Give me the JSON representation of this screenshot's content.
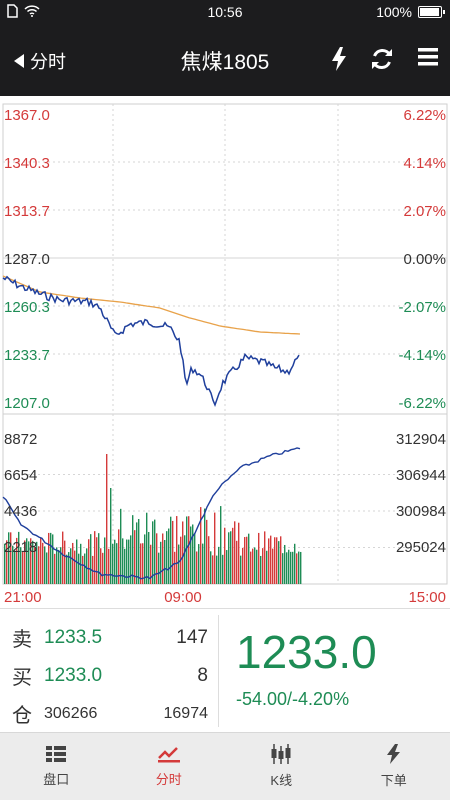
{
  "status_bar": {
    "time": "10:56",
    "battery": "100%",
    "battery_level": 1.0,
    "icons": [
      "sim-icon",
      "wifi-icon"
    ]
  },
  "nav": {
    "back_label": "分时",
    "title": "焦煤1805",
    "icons": [
      "flash-icon",
      "refresh-icon",
      "menu-icon"
    ]
  },
  "chart_labels": {
    "price_left": [
      "1367.0",
      "1340.3",
      "1313.7",
      "1287.0",
      "1260.3",
      "1233.7",
      "1207.0"
    ],
    "pct_right": [
      "6.22%",
      "4.14%",
      "2.07%",
      "0.00%",
      "-2.07%",
      "-4.14%",
      "-6.22%"
    ],
    "vol_left": [
      "8872",
      "6654",
      "4436",
      "2218"
    ],
    "oi_right": [
      "312904",
      "306944",
      "300984",
      "295024"
    ],
    "time_axis": [
      "21:00",
      "09:00",
      "15:00"
    ]
  },
  "colors": {
    "up": "#d43a3a",
    "down": "#1e8c55",
    "neutral": "#333333",
    "price_line": "#1f3f9c",
    "avg_line": "#e8a24a"
  },
  "quote": {
    "sell_label": "卖",
    "sell_price": "1233.5",
    "sell_vol": "147",
    "buy_label": "买",
    "buy_price": "1233.0",
    "buy_vol": "8",
    "oi_label": "仓",
    "oi_value": "306266",
    "oi_change": "16974",
    "last_price": "1233.0",
    "change": "-54.00/-4.20%"
  },
  "tabs": [
    {
      "label": "盘口",
      "icon": "list-icon",
      "active": false
    },
    {
      "label": "分时",
      "icon": "line-chart-icon",
      "active": true
    },
    {
      "label": "K线",
      "icon": "candlestick-icon",
      "active": false
    },
    {
      "label": "下单",
      "icon": "order-flash-icon",
      "active": false
    }
  ]
}
